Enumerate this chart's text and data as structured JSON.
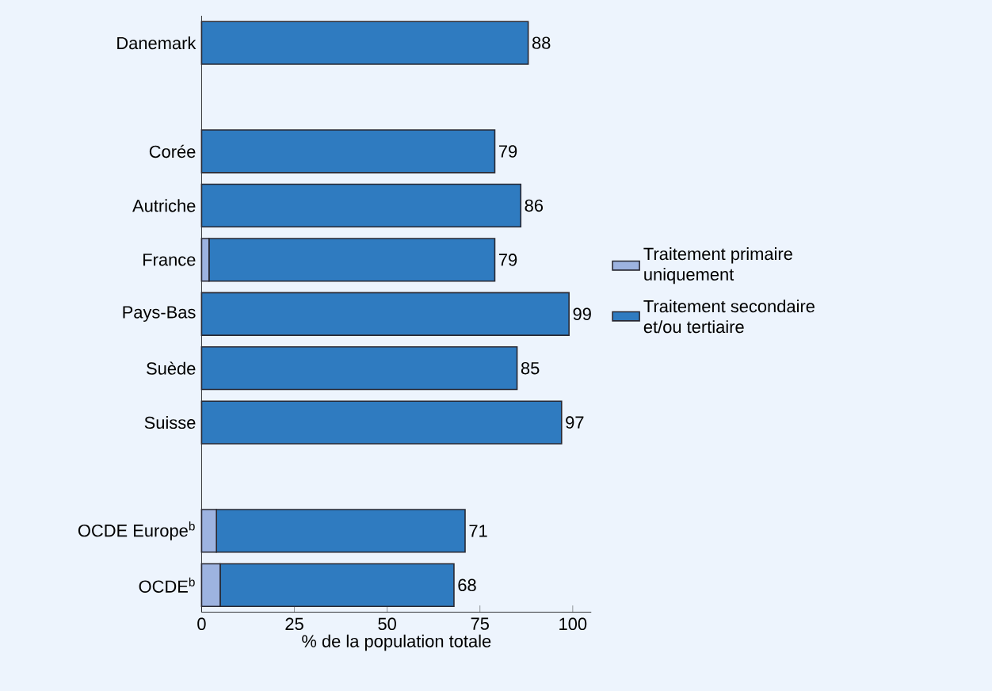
{
  "chart_data": {
    "type": "bar",
    "orientation": "horizontal",
    "stacked": true,
    "categories": [
      "Danemark",
      null,
      "Corée",
      "Autriche",
      "France",
      "Pays-Bas",
      "Suède",
      "Suisse",
      null,
      "OCDE Europe$^{b}$",
      "OCDE$^{b}$"
    ],
    "series": [
      {
        "name": "Traitement primaire uniquement",
        "color": "#9db3e0",
        "values": [
          0,
          null,
          0,
          0,
          2,
          0,
          0,
          0,
          null,
          4,
          5
        ]
      },
      {
        "name": "Traitement secondaire et/ou tertiaire",
        "color": "#2f7bc0",
        "values": [
          88,
          null,
          79,
          86,
          77,
          99,
          85,
          97,
          null,
          67,
          63
        ]
      }
    ],
    "totals": [
      "88",
      null,
      "79",
      "86",
      "79",
      "99",
      "85",
      "97",
      null,
      "71",
      "68"
    ],
    "xlabel": "% de la population totale",
    "xlim": [
      0,
      105
    ],
    "xticks": [
      0,
      25,
      50,
      75,
      100
    ],
    "legend": "right",
    "grid": false
  }
}
